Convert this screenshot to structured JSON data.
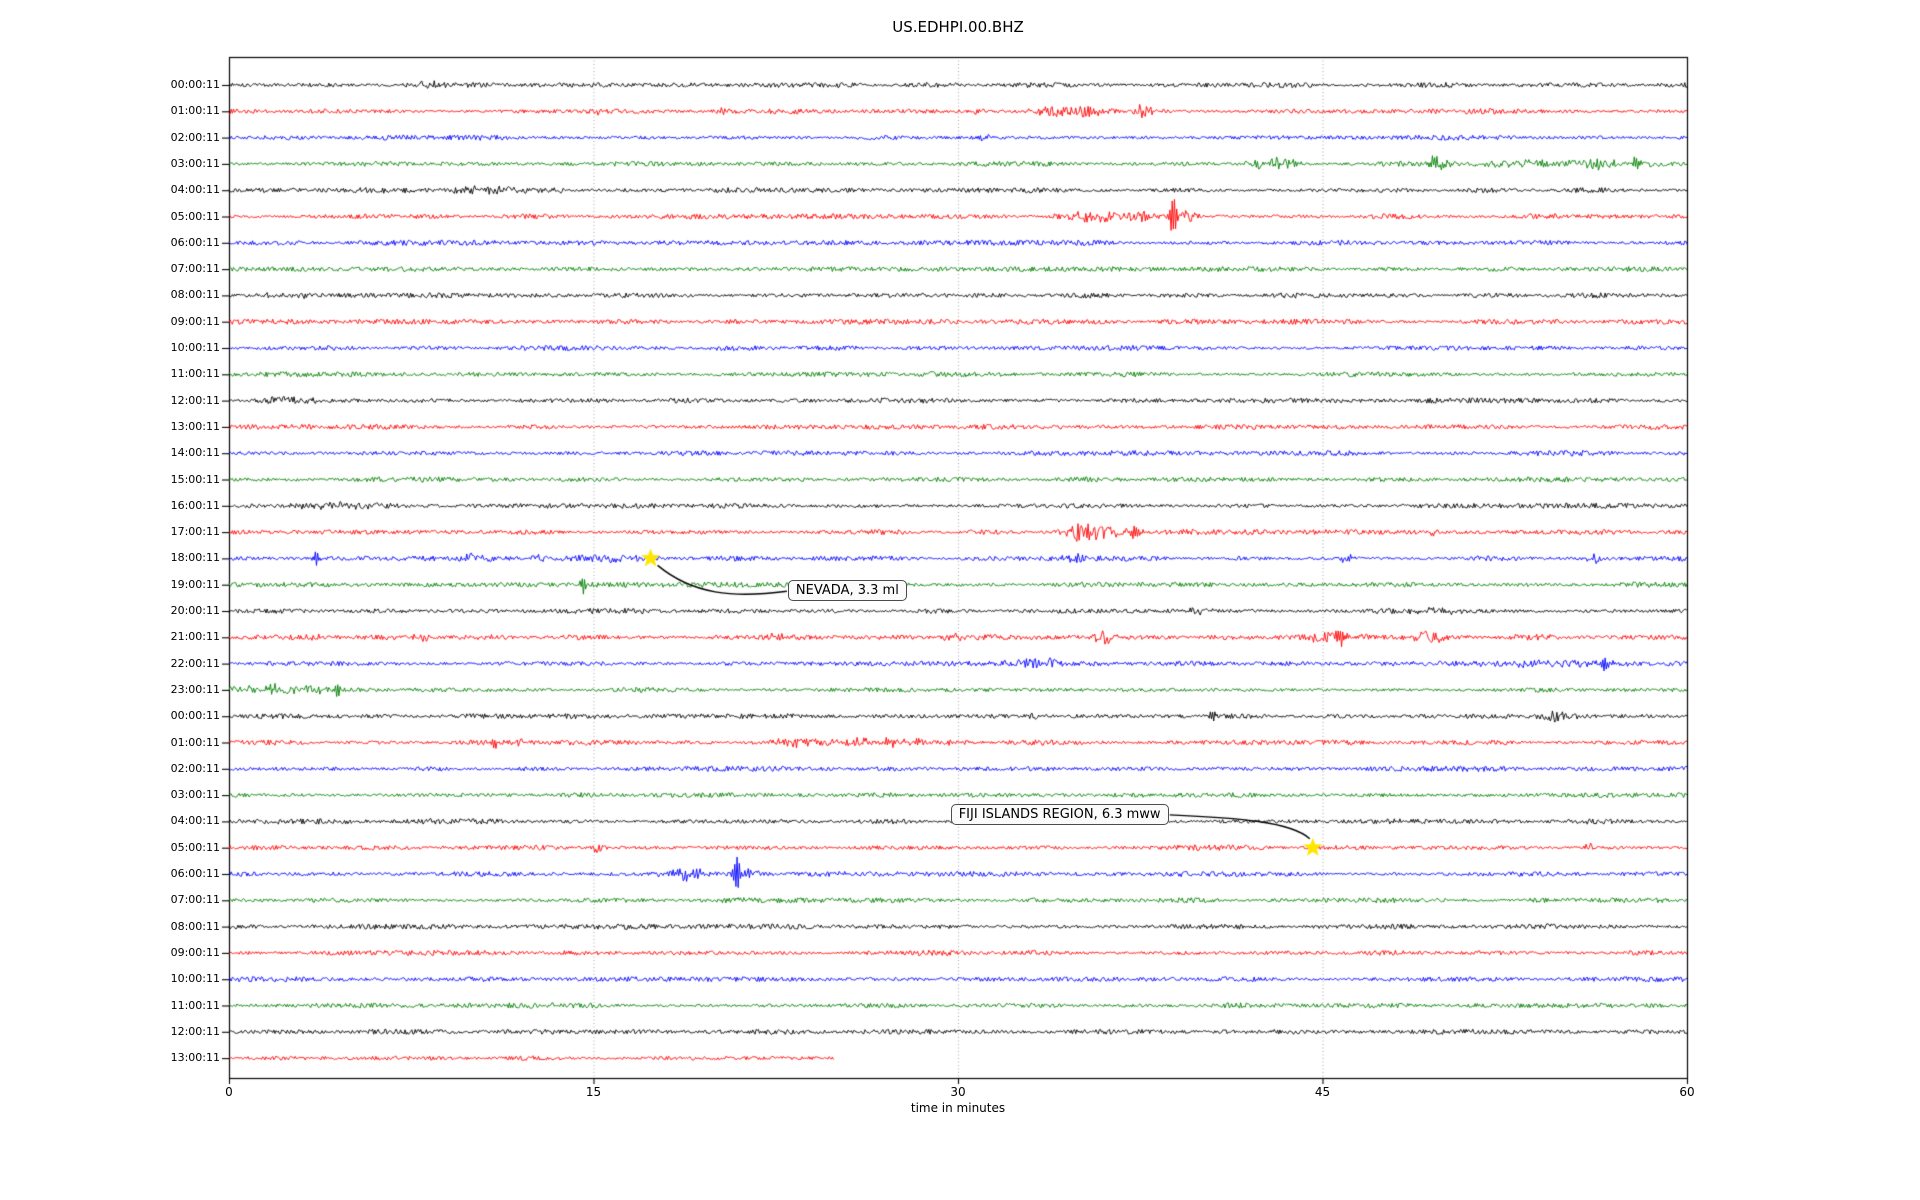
{
  "chart_data": {
    "type": "line",
    "subtype": "seismogram-dayplot",
    "title": "US.EDHPI.00.BHZ",
    "xlabel": "time in minutes",
    "x_ticks": [
      0,
      15,
      30,
      45,
      60
    ],
    "x_range_minutes": [
      0,
      60
    ],
    "grid": "vertical-dotted",
    "grid_color": "#aaaaaa",
    "frame_color": "#000000",
    "trace_color_cycle": [
      "#000000",
      "#ff0000",
      "#0000ff",
      "#008000"
    ],
    "marker_color": "#ffe600",
    "rows": [
      {
        "label": "00:00:11",
        "events": [
          {
            "t": 8.3,
            "amp": 2.5,
            "w": 1.0
          }
        ]
      },
      {
        "label": "01:00:11",
        "events": [
          {
            "t": 15.2,
            "amp": 3,
            "w": 0.15
          },
          {
            "t": 20.4,
            "amp": 4,
            "w": 0.2
          },
          {
            "t": 30.8,
            "amp": 4,
            "w": 0.15
          },
          {
            "t": 33.8,
            "amp": 6,
            "w": 0.5
          },
          {
            "t": 35.2,
            "amp": 5,
            "w": 0.7
          },
          {
            "t": 37.7,
            "amp": 7,
            "w": 0.35
          }
        ]
      },
      {
        "label": "02:00:11",
        "events": [
          {
            "t": 31,
            "amp": 3,
            "w": 0.3
          }
        ]
      },
      {
        "label": "03:00:11",
        "events": [
          {
            "t": 42.4,
            "amp": 6,
            "w": 0.4
          },
          {
            "t": 43.3,
            "amp": 7,
            "w": 0.4
          },
          {
            "t": 49.6,
            "amp": 8,
            "w": 0.12
          },
          {
            "t": 50,
            "amp": 5,
            "w": 0.4
          },
          {
            "t": 53.5,
            "amp": 3,
            "w": 2.0
          },
          {
            "t": 56.3,
            "amp": 4,
            "w": 1.2
          },
          {
            "t": 57.9,
            "amp": 8,
            "w": 0.1
          }
        ]
      },
      {
        "label": "04:00:11",
        "events": [
          {
            "t": 10,
            "amp": 2.5,
            "w": 2.0
          },
          {
            "t": 13.6,
            "amp": 3.5,
            "w": 0.2
          }
        ]
      },
      {
        "label": "05:00:11",
        "events": [
          {
            "t": 35.6,
            "amp": 5,
            "w": 1.0
          },
          {
            "t": 37.6,
            "amp": 6,
            "w": 0.5
          },
          {
            "t": 38.85,
            "amp": 21,
            "w": 0.09
          },
          {
            "t": 39.4,
            "amp": 7,
            "w": 0.35
          }
        ]
      },
      {
        "label": "06:00:11",
        "events": []
      },
      {
        "label": "07:00:11",
        "events": []
      },
      {
        "label": "08:00:11",
        "events": [
          {
            "t": 2.5,
            "amp": 2.5,
            "w": 0.8
          }
        ]
      },
      {
        "label": "09:00:11",
        "events": []
      },
      {
        "label": "10:00:11",
        "events": []
      },
      {
        "label": "11:00:11",
        "events": []
      },
      {
        "label": "12:00:11",
        "events": [
          {
            "t": 2.3,
            "amp": 3.5,
            "w": 1.0
          }
        ]
      },
      {
        "label": "13:00:11",
        "events": []
      },
      {
        "label": "14:00:11",
        "events": []
      },
      {
        "label": "15:00:11",
        "events": []
      },
      {
        "label": "16:00:11",
        "events": [
          {
            "t": 4.5,
            "amp": 2.5,
            "w": 1.2
          }
        ]
      },
      {
        "label": "17:00:11",
        "events": [
          {
            "t": 34.9,
            "amp": 7,
            "w": 0.4
          },
          {
            "t": 35.7,
            "amp": 6,
            "w": 0.8
          },
          {
            "t": 37.3,
            "amp": 7,
            "w": 0.12
          },
          {
            "t": 49.6,
            "amp": 4,
            "w": 0.2
          }
        ]
      },
      {
        "label": "18:00:11",
        "events": [
          {
            "t": 3.6,
            "amp": 7,
            "w": 0.08
          },
          {
            "t": 9.9,
            "amp": 4,
            "w": 0.25
          },
          {
            "t": 10.6,
            "amp": 3.5,
            "w": 0.2
          },
          {
            "t": 12.8,
            "amp": 3.5,
            "w": 0.25
          },
          {
            "t": 14.8,
            "amp": 4,
            "w": 0.8
          },
          {
            "t": 16.2,
            "amp": 3.5,
            "w": 0.4
          },
          {
            "t": 34.9,
            "amp": 5,
            "w": 0.3
          },
          {
            "t": 46,
            "amp": 3,
            "w": 0.3
          },
          {
            "t": 56.2,
            "amp": 4,
            "w": 0.25
          }
        ]
      },
      {
        "label": "19:00:11",
        "events": [
          {
            "t": 14.6,
            "amp": 8,
            "w": 0.09
          }
        ]
      },
      {
        "label": "20:00:11",
        "events": [
          {
            "t": 40,
            "amp": 2.5,
            "w": 0.3
          },
          {
            "t": 49.6,
            "amp": 3.5,
            "w": 0.8
          }
        ]
      },
      {
        "label": "21:00:11",
        "events": [
          {
            "t": 3.5,
            "amp": 5,
            "w": 0.25
          },
          {
            "t": 8,
            "amp": 4,
            "w": 0.3
          },
          {
            "t": 22.6,
            "amp": 4,
            "w": 0.25
          },
          {
            "t": 29.8,
            "amp": 4,
            "w": 0.3
          },
          {
            "t": 36.1,
            "amp": 7,
            "w": 0.35
          },
          {
            "t": 44.9,
            "amp": 4,
            "w": 1.2
          },
          {
            "t": 45.7,
            "amp": 8,
            "w": 0.12
          },
          {
            "t": 49.4,
            "amp": 5,
            "w": 0.5
          },
          {
            "t": 53.5,
            "amp": 3.5,
            "w": 0.8
          }
        ]
      },
      {
        "label": "22:00:11",
        "events": [
          {
            "t": 32.9,
            "amp": 6,
            "w": 0.5
          },
          {
            "t": 33.9,
            "amp": 5,
            "w": 0.25
          },
          {
            "t": 53,
            "amp": 3,
            "w": 3.0
          },
          {
            "t": 56.6,
            "amp": 10,
            "w": 0.1
          }
        ]
      },
      {
        "label": "23:00:11",
        "events": [
          {
            "t": 1.8,
            "amp": 4,
            "w": 1.2
          },
          {
            "t": 3,
            "amp": 3,
            "w": 0.8
          },
          {
            "t": 4.45,
            "amp": 8,
            "w": 0.09
          }
        ]
      },
      {
        "label": "00:00:11",
        "events": [
          {
            "t": 33,
            "amp": 2.5,
            "w": 0.4
          },
          {
            "t": 40.5,
            "amp": 6,
            "w": 0.1
          },
          {
            "t": 54.5,
            "amp": 5,
            "w": 0.7
          }
        ]
      },
      {
        "label": "01:00:11",
        "events": [
          {
            "t": 10.9,
            "amp": 6,
            "w": 0.12
          },
          {
            "t": 12,
            "amp": 5,
            "w": 0.15
          },
          {
            "t": 23.5,
            "amp": 3.5,
            "w": 0.8
          },
          {
            "t": 26.5,
            "amp": 4,
            "w": 1.8
          }
        ]
      },
      {
        "label": "02:00:11",
        "events": []
      },
      {
        "label": "03:00:11",
        "events": []
      },
      {
        "label": "04:00:11",
        "events": []
      },
      {
        "label": "05:00:11",
        "events": [
          {
            "t": 15.2,
            "amp": 6,
            "w": 0.2
          },
          {
            "t": 56,
            "amp": 5,
            "w": 0.15
          }
        ]
      },
      {
        "label": "06:00:11",
        "events": [
          {
            "t": 18.4,
            "amp": 5,
            "w": 0.4
          },
          {
            "t": 19.1,
            "amp": 7,
            "w": 0.35
          },
          {
            "t": 20.9,
            "amp": 21,
            "w": 0.09
          },
          {
            "t": 21.4,
            "amp": 6,
            "w": 0.25
          }
        ]
      },
      {
        "label": "07:00:11",
        "events": []
      },
      {
        "label": "08:00:11",
        "events": []
      },
      {
        "label": "09:00:11",
        "events": []
      },
      {
        "label": "10:00:11",
        "events": []
      },
      {
        "label": "11:00:11",
        "events": []
      },
      {
        "label": "12:00:11",
        "events": []
      },
      {
        "label": "13:00:11",
        "end": 24.9,
        "events": []
      }
    ],
    "annotations": [
      {
        "label": "NEVADA, 3.3 ml",
        "row": 18,
        "t": 17.35,
        "box_t": 23.0,
        "box_row": 19.25,
        "side": "left"
      },
      {
        "label": "FIJI ISLANDS REGION, 6.3 mww",
        "row": 29,
        "t": 44.6,
        "box_t": 29.7,
        "box_row": 27.75,
        "side": "right"
      }
    ]
  }
}
